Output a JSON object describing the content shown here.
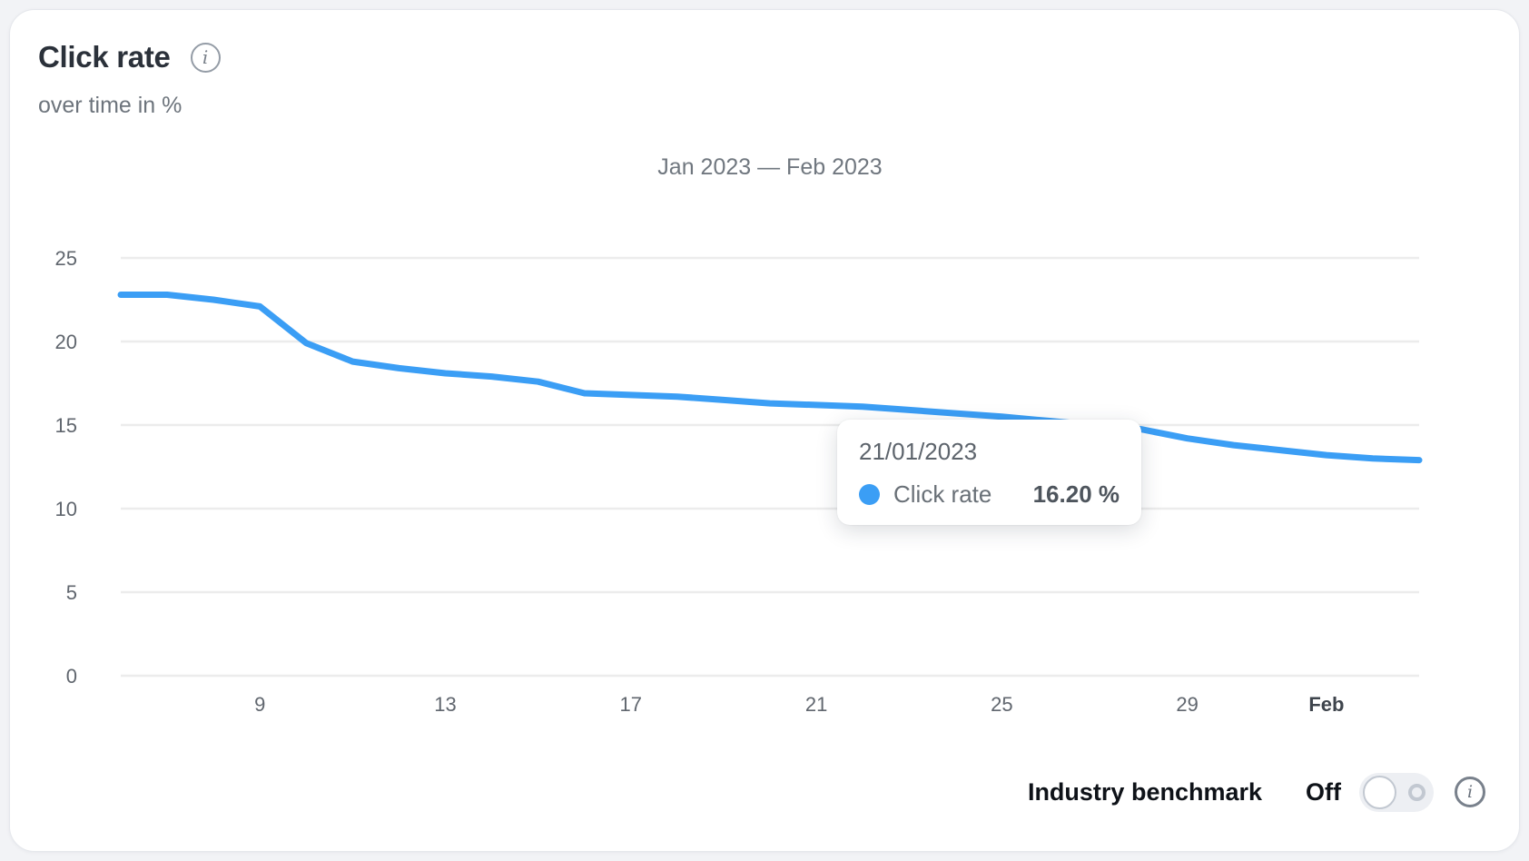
{
  "header": {
    "title": "Click rate",
    "subtitle": "over time in %"
  },
  "icons": {
    "info_glyph": "i"
  },
  "chart_data": {
    "type": "line",
    "title": "Jan 2023 — Feb 2023",
    "x": [
      "06/01/2023",
      "07/01/2023",
      "08/01/2023",
      "09/01/2023",
      "10/01/2023",
      "11/01/2023",
      "12/01/2023",
      "13/01/2023",
      "14/01/2023",
      "15/01/2023",
      "16/01/2023",
      "17/01/2023",
      "18/01/2023",
      "19/01/2023",
      "20/01/2023",
      "21/01/2023",
      "22/01/2023",
      "23/01/2023",
      "24/01/2023",
      "25/01/2023",
      "26/01/2023",
      "27/01/2023",
      "28/01/2023",
      "29/01/2023",
      "30/01/2023",
      "31/01/2023",
      "01/02/2023",
      "02/02/2023",
      "03/02/2023"
    ],
    "series": [
      {
        "name": "Click rate",
        "color": "#3b9ef5",
        "values": [
          22.8,
          22.8,
          22.5,
          22.1,
          19.9,
          18.8,
          18.4,
          18.1,
          17.9,
          17.6,
          16.9,
          16.8,
          16.7,
          16.5,
          16.3,
          16.2,
          16.1,
          15.9,
          15.7,
          15.5,
          15.25,
          15.0,
          14.75,
          14.2,
          13.8,
          13.5,
          13.2,
          13.0,
          12.9
        ]
      }
    ],
    "ylim": [
      0,
      25
    ],
    "yticks": [
      0,
      5,
      10,
      15,
      20,
      25
    ],
    "xticks": [
      {
        "label": "9",
        "index": 3,
        "bold": false
      },
      {
        "label": "13",
        "index": 7,
        "bold": false
      },
      {
        "label": "17",
        "index": 11,
        "bold": false
      },
      {
        "label": "21",
        "index": 15,
        "bold": false
      },
      {
        "label": "25",
        "index": 19,
        "bold": false
      },
      {
        "label": "29",
        "index": 23,
        "bold": false
      },
      {
        "label": "Feb",
        "index": 26,
        "bold": true
      }
    ],
    "grid": "horizontal",
    "legend": "none",
    "grid_color": "#ececec"
  },
  "tooltip": {
    "date": "21/01/2023",
    "series_label": "Click rate",
    "value": "16.20 %",
    "dot_color": "#3b9ef5"
  },
  "footer": {
    "benchmark_label": "Industry benchmark",
    "toggle_state": "Off"
  },
  "colors": {
    "accent_blue": "#3b9ef5",
    "card_background": "#ffffff",
    "page_background": "#f2f3f6",
    "title_text": "#2b313a",
    "muted_text": "#6d747c",
    "axis_text": "#60666e"
  }
}
